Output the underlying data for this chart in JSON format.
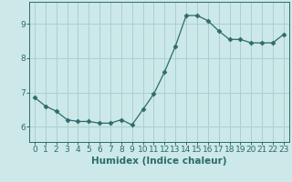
{
  "x": [
    0,
    1,
    2,
    3,
    4,
    5,
    6,
    7,
    8,
    9,
    10,
    11,
    12,
    13,
    14,
    15,
    16,
    17,
    18,
    19,
    20,
    21,
    22,
    23
  ],
  "y": [
    6.85,
    6.6,
    6.45,
    6.2,
    6.15,
    6.15,
    6.1,
    6.1,
    6.2,
    6.05,
    6.5,
    6.95,
    7.6,
    8.35,
    9.25,
    9.25,
    9.1,
    8.8,
    8.55,
    8.55,
    8.45,
    8.45,
    8.45,
    8.7
  ],
  "line_color": "#2d6b6b",
  "marker": "D",
  "marker_size": 2.5,
  "bg_color": "#cce8e8",
  "grid_color": "#aad0d0",
  "xlabel": "Humidex (Indice chaleur)",
  "xlim": [
    -0.5,
    23.5
  ],
  "ylim": [
    5.55,
    9.65
  ],
  "yticks": [
    6,
    7,
    8,
    9
  ],
  "xticks": [
    0,
    1,
    2,
    3,
    4,
    5,
    6,
    7,
    8,
    9,
    10,
    11,
    12,
    13,
    14,
    15,
    16,
    17,
    18,
    19,
    20,
    21,
    22,
    23
  ],
  "tick_fontsize": 6.5,
  "xlabel_fontsize": 7.5,
  "axis_color": "#2d6b6b"
}
